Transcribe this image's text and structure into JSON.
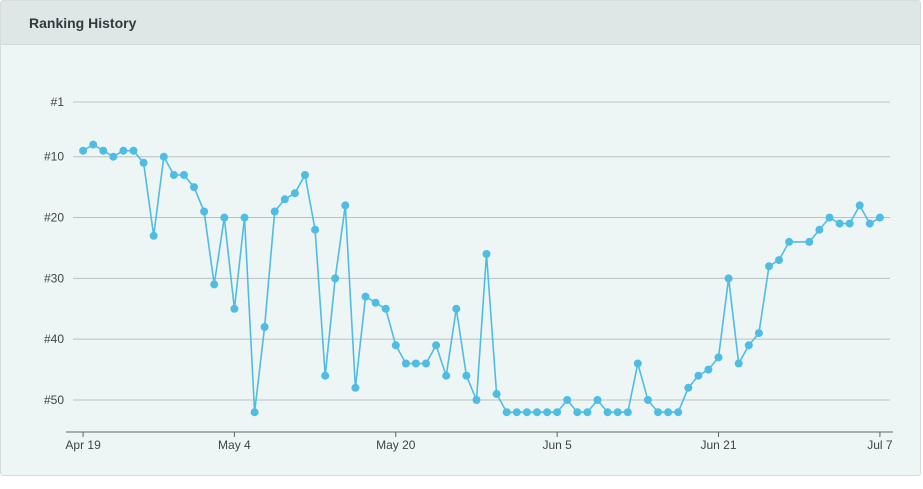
{
  "panel": {
    "title": "Ranking History"
  },
  "colors": {
    "series": "#4fbde3",
    "header_bg": "#dfe6e6",
    "panel_bg": "#eef5f5"
  },
  "chart_data": {
    "type": "line",
    "title": "",
    "xlabel": "",
    "ylabel": "",
    "y_inverted": true,
    "ylim": [
      1,
      55
    ],
    "y_ticks": [
      {
        "value": 1,
        "label": "#1"
      },
      {
        "value": 10,
        "label": "#10"
      },
      {
        "value": 20,
        "label": "#20"
      },
      {
        "value": 30,
        "label": "#30"
      },
      {
        "value": 40,
        "label": "#40"
      },
      {
        "value": 50,
        "label": "#50"
      }
    ],
    "x_ticks": [
      "Apr 19",
      "May 4",
      "May 20",
      "Jun 5",
      "Jun 21",
      "Jul 7"
    ],
    "xlim": [
      "Apr 18",
      "Jul 8"
    ],
    "grid": true,
    "legend": "none",
    "series": [
      {
        "x": [
          "Apr 19",
          "Apr 20",
          "Apr 21",
          "Apr 22",
          "Apr 23",
          "Apr 24",
          "Apr 25",
          "Apr 26",
          "Apr 27",
          "Apr 28",
          "Apr 29",
          "Apr 30",
          "May 1",
          "May 2",
          "May 3",
          "May 4",
          "May 5",
          "May 6",
          "May 7",
          "May 8",
          "May 9",
          "May 10",
          "May 11",
          "May 12",
          "May 13",
          "May 14",
          "May 15",
          "May 16",
          "May 17",
          "May 18",
          "May 19",
          "May 20",
          "May 21",
          "May 22",
          "May 23",
          "May 24",
          "May 25",
          "May 26",
          "May 27",
          "May 28",
          "May 29",
          "May 30",
          "May 31",
          "Jun 1",
          "Jun 2",
          "Jun 3",
          "Jun 4",
          "Jun 5",
          "Jun 6",
          "Jun 7",
          "Jun 8",
          "Jun 9",
          "Jun 10",
          "Jun 11",
          "Jun 12",
          "Jun 13",
          "Jun 14",
          "Jun 15",
          "Jun 16",
          "Jun 17",
          "Jun 18",
          "Jun 19",
          "Jun 20",
          "Jun 21",
          "Jun 22",
          "Jun 23",
          "Jun 24",
          "Jun 25",
          "Jun 26",
          "Jun 27",
          "Jun 28",
          "Jun 30",
          "Jul 1",
          "Jul 2",
          "Jul 3",
          "Jul 4",
          "Jul 5",
          "Jul 6",
          "Jul 7"
        ],
        "values": [
          9,
          8,
          9,
          10,
          9,
          9,
          11,
          23,
          10,
          13,
          13,
          15,
          19,
          31,
          20,
          35,
          20,
          52,
          38,
          19,
          17,
          16,
          13,
          22,
          46,
          30,
          18,
          48,
          33,
          34,
          35,
          41,
          44,
          44,
          44,
          41,
          46,
          35,
          46,
          50,
          26,
          49,
          52,
          52,
          52,
          52,
          52,
          52,
          50,
          52,
          52,
          50,
          52,
          52,
          52,
          44,
          50,
          52,
          52,
          52,
          48,
          46,
          45,
          43,
          30,
          44,
          41,
          39,
          28,
          27,
          24,
          24,
          22,
          20,
          21,
          21,
          18,
          21,
          20
        ]
      }
    ]
  }
}
